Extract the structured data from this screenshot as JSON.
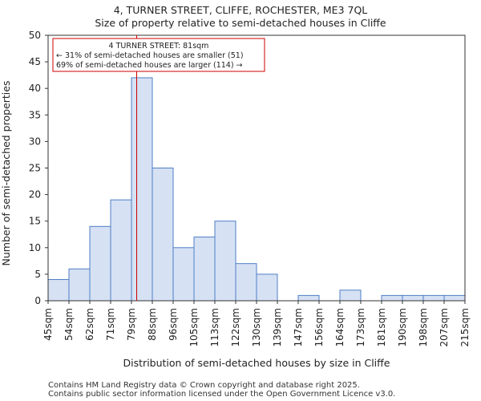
{
  "chart_data": {
    "type": "bar",
    "title": "4, TURNER STREET, CLIFFE, ROCHESTER, ME3 7QL",
    "subtitle": "Size of property relative to semi-detached houses in Cliffe",
    "xlabel": "Distribution of semi-detached houses by size in Cliffe",
    "ylabel": "Number of semi-detached properties",
    "bin_edges_labels": [
      "45sqm",
      "54sqm",
      "62sqm",
      "71sqm",
      "79sqm",
      "88sqm",
      "96sqm",
      "105sqm",
      "113sqm",
      "122sqm",
      "130sqm",
      "139sqm",
      "147sqm",
      "156sqm",
      "164sqm",
      "173sqm",
      "181sqm",
      "190sqm",
      "198sqm",
      "207sqm",
      "215sqm"
    ],
    "values": [
      4,
      6,
      14,
      19,
      42,
      25,
      10,
      12,
      15,
      7,
      5,
      0,
      1,
      0,
      2,
      0,
      1,
      1,
      1,
      1
    ],
    "ylim": [
      0,
      50
    ],
    "yticks": [
      0,
      5,
      10,
      15,
      20,
      25,
      30,
      35,
      40,
      45,
      50
    ],
    "property_marker": {
      "value_sqm": 81,
      "bin_position": 4.25
    },
    "annotation": {
      "line1": "4 TURNER STREET: 81sqm",
      "line2": "← 31% of semi-detached houses are smaller (51)",
      "line3": "69% of semi-detached houses are larger (114) →"
    },
    "colors": {
      "bar_fill": "#d6e1f4",
      "bar_edge": "#4f7fc6",
      "marker": "#cc0000"
    }
  },
  "footer": {
    "line1": "Contains HM Land Registry data © Crown copyright and database right 2025.",
    "line2": "Contains public sector information licensed under the Open Government Licence v3.0."
  }
}
